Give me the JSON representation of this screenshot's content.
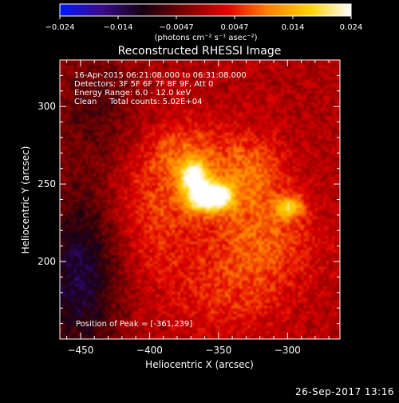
{
  "chart_data": {
    "type": "heatmap",
    "title": "Reconstructed RHESSI Image",
    "xlabel": "Heliocentric X (arcsec)",
    "ylabel": "Heliocentric Y (arcsec)",
    "xlim": [
      -465,
      -262
    ],
    "ylim": [
      150,
      330
    ],
    "x_ticks": [
      -450,
      -400,
      -350,
      -300
    ],
    "y_ticks": [
      200,
      250,
      300
    ],
    "annotations": [
      "16-Apr-2015 06:21:08.000 to 06:31:08.000",
      "Detectors: 3F 5F 6F 7F 8F 9F, Att 0",
      "Energy Range: 6.0 - 12.0 keV",
      "Clean     Total counts: 5.02E+04"
    ],
    "peak_label": "Position of Peak = [-361,239]",
    "peak": [
      -361,
      239
    ],
    "colorbar": {
      "min": -0.024,
      "max": 0.024,
      "ticks": [
        "-0.024",
        "-0.014",
        "-0.0047",
        "0.0047",
        "0.014",
        "0.024"
      ],
      "unit": "(photons cm⁻² s⁻¹ asec⁻²)",
      "colors": [
        "#0018ff",
        "#3a0a8a",
        "#150010",
        "#7a0000",
        "#e00000",
        "#ff8000",
        "#ffd000",
        "#ffffff"
      ]
    },
    "sources": [
      {
        "x": -362,
        "y": 242,
        "sx": 9,
        "sy": 7,
        "amp": 0.024
      },
      {
        "x": -368,
        "y": 256,
        "sx": 7,
        "sy": 6,
        "amp": 0.019
      },
      {
        "x": -348,
        "y": 242,
        "sx": 7,
        "sy": 6,
        "amp": 0.016
      },
      {
        "x": -299,
        "y": 235,
        "sx": 7,
        "sy": 5,
        "amp": 0.014
      },
      {
        "x": -330,
        "y": 258,
        "sx": 20,
        "sy": 18,
        "amp": 0.009
      },
      {
        "x": -375,
        "y": 270,
        "sx": 18,
        "sy": 14,
        "amp": 0.007
      },
      {
        "x": -320,
        "y": 215,
        "sx": 28,
        "sy": 20,
        "amp": 0.008
      },
      {
        "x": -395,
        "y": 232,
        "sx": 22,
        "sy": 30,
        "amp": 0.006
      },
      {
        "x": -340,
        "y": 178,
        "sx": 30,
        "sy": 18,
        "amp": 0.005
      },
      {
        "x": -450,
        "y": 190,
        "sx": 20,
        "sy": 40,
        "amp": -0.013
      },
      {
        "x": -440,
        "y": 300,
        "sx": 22,
        "sy": 25,
        "amp": -0.006
      }
    ]
  },
  "footer": {
    "date": "26-Sep-2017 13:16"
  }
}
